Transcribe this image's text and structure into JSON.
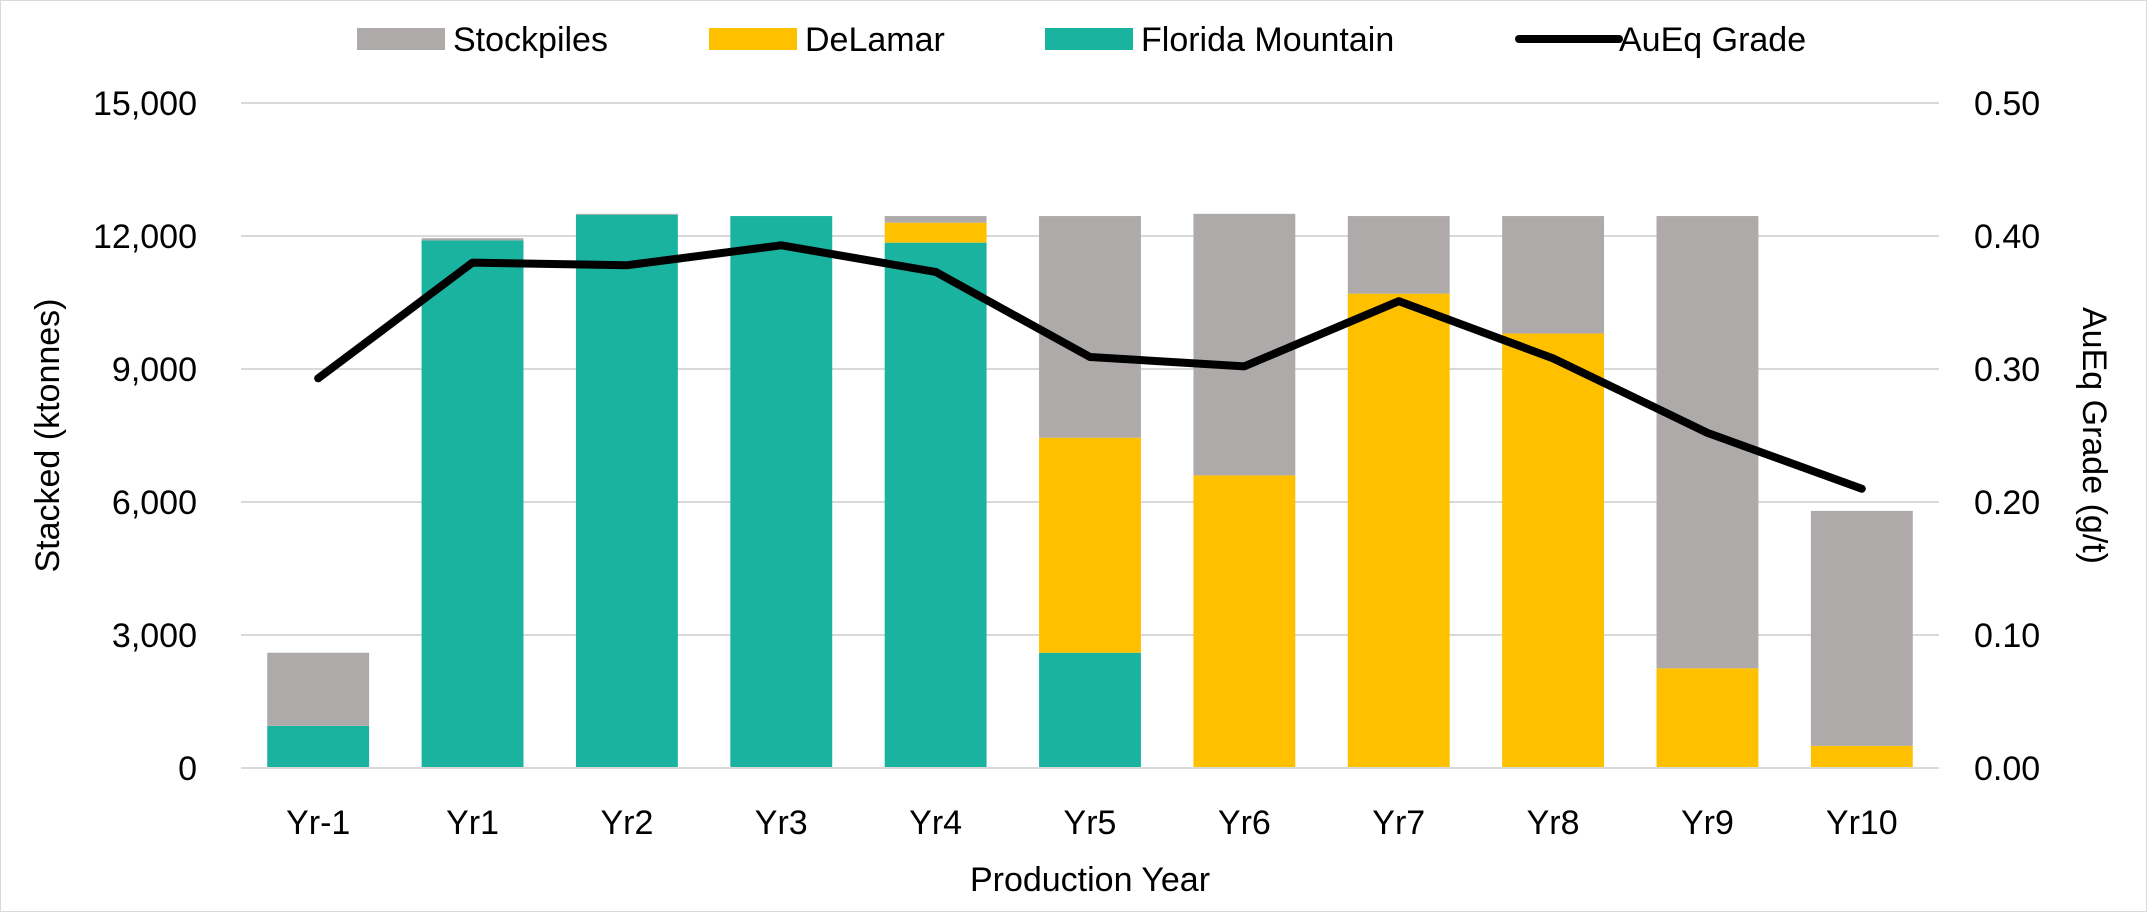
{
  "chart_data": {
    "type": "bar",
    "stacked": true,
    "title": "",
    "categories": [
      "Yr-1",
      "Yr1",
      "Yr2",
      "Yr3",
      "Yr4",
      "Yr5",
      "Yr6",
      "Yr7",
      "Yr8",
      "Yr9",
      "Yr10"
    ],
    "series": [
      {
        "name": "Florida Mountain",
        "type": "bar",
        "axis": "left",
        "color": "#1AB3A0",
        "values": [
          950,
          11900,
          12480,
          12450,
          11850,
          2600,
          0,
          0,
          0,
          0,
          0
        ]
      },
      {
        "name": "DeLamar",
        "type": "bar",
        "axis": "left",
        "color": "#FFC000",
        "values": [
          0,
          0,
          0,
          0,
          450,
          4850,
          6600,
          10700,
          9800,
          2250,
          500
        ]
      },
      {
        "name": "Stockpiles",
        "type": "bar",
        "axis": "left",
        "color": "#AEAAAA",
        "values": [
          1650,
          50,
          20,
          0,
          150,
          5000,
          5900,
          1750,
          2650,
          10200,
          5300
        ]
      },
      {
        "name": "AuEq Grade",
        "type": "line",
        "axis": "right",
        "color": "#000000",
        "values": [
          0.293,
          0.38,
          0.378,
          0.393,
          0.373,
          0.309,
          0.302,
          0.351,
          0.308,
          0.252,
          0.21
        ]
      }
    ],
    "legend_order": [
      "Stockpiles",
      "DeLamar",
      "Florida Mountain",
      "AuEq Grade"
    ],
    "legend_position": "top",
    "xlabel": "Production Year",
    "ylabel": "Stacked (ktonnes)",
    "y2label": "AuEq Grade (g/t)",
    "ylim": [
      0,
      15000
    ],
    "y2lim": [
      0,
      0.5
    ],
    "yticks": [
      0,
      3000,
      6000,
      9000,
      12000,
      15000
    ],
    "ytick_labels": [
      "0",
      "3,000",
      "6,000",
      "9,000",
      "12,000",
      "15,000"
    ],
    "y2ticks": [
      0,
      0.1,
      0.2,
      0.3,
      0.4,
      0.5
    ],
    "y2tick_labels": [
      "0.00",
      "0.10",
      "0.20",
      "0.30",
      "0.40",
      "0.50"
    ],
    "grid": true,
    "grid_color": "#D9D9D9"
  }
}
